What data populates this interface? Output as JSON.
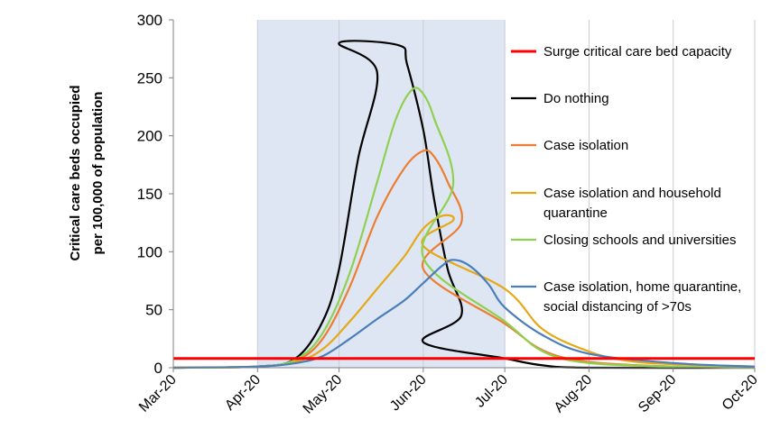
{
  "chart_data": {
    "type": "line",
    "ylabel_line1": "Critical care beds occupied",
    "ylabel_line2": "per 100,000 of population",
    "ylim": [
      0,
      300
    ],
    "yticks": [
      0,
      50,
      100,
      150,
      200,
      250,
      300
    ],
    "xlim": [
      "Mar-20",
      "Oct-20"
    ],
    "xtick_labels": [
      "Mar-20",
      "Apr-20",
      "May-20",
      "Jun-20",
      "Jul-20",
      "Aug-20",
      "Sep-20",
      "Oct-20"
    ],
    "shaded_period": [
      "Apr-20",
      "Jul-20"
    ],
    "grid": "vertical",
    "legend_position": "right",
    "series": [
      {
        "name": "Surge critical care bed capacity",
        "color": "#ff0000",
        "points": [
          [
            "Mar-20",
            8
          ],
          [
            "Oct-20",
            8
          ]
        ]
      },
      {
        "name": "Do nothing",
        "color": "#000000",
        "points": [
          [
            "Mar-20",
            0
          ],
          [
            "Apr-20",
            1
          ],
          [
            "Apr-15",
            8
          ],
          [
            "Apr-25",
            40
          ],
          [
            "May-01",
            85
          ],
          [
            "May-08",
            180
          ],
          [
            "May-15",
            255
          ],
          [
            "May-20",
            280
          ],
          [
            "May-23",
            278
          ],
          [
            "May-26",
            262
          ],
          [
            "Jun-01",
            205
          ],
          [
            "Jun-05",
            145
          ],
          [
            "Jun-10",
            85
          ],
          [
            "Jun-15",
            45
          ],
          [
            "Jun-20",
            22
          ],
          [
            "Jul-01",
            8
          ],
          [
            "Jul-15",
            2
          ],
          [
            "Aug-01",
            0
          ],
          [
            "Oct-20",
            0
          ]
        ]
      },
      {
        "name": "Case isolation",
        "color": "#ed7d31",
        "points": [
          [
            "Mar-20",
            0
          ],
          [
            "Apr-20",
            1
          ],
          [
            "Apr-15",
            6
          ],
          [
            "Apr-25",
            25
          ],
          [
            "May-05",
            70
          ],
          [
            "May-15",
            130
          ],
          [
            "May-25",
            172
          ],
          [
            "Jun-01",
            187
          ],
          [
            "Jun-05",
            182
          ],
          [
            "Jun-10",
            160
          ],
          [
            "Jun-15",
            125
          ],
          [
            "Jun-20",
            85
          ],
          [
            "Jul-01",
            38
          ],
          [
            "Jul-15",
            15
          ],
          [
            "Aug-01",
            5
          ],
          [
            "Sep-01",
            1
          ],
          [
            "Oct-20",
            0
          ]
        ]
      },
      {
        "name": "Case isolation and household quarantine",
        "color": "#e6a817",
        "points": [
          [
            "Mar-20",
            0
          ],
          [
            "Apr-20",
            1
          ],
          [
            "Apr-15",
            5
          ],
          [
            "Apr-25",
            16
          ],
          [
            "May-05",
            40
          ],
          [
            "May-15",
            68
          ],
          [
            "May-25",
            96
          ],
          [
            "Jun-01",
            120
          ],
          [
            "Jun-08",
            131
          ],
          [
            "Jun-12",
            127
          ],
          [
            "Jun-20",
            105
          ],
          [
            "Jul-01",
            68
          ],
          [
            "Jul-15",
            33
          ],
          [
            "Aug-01",
            14
          ],
          [
            "Aug-15",
            6
          ],
          [
            "Sep-01",
            3
          ],
          [
            "Oct-20",
            1
          ]
        ]
      },
      {
        "name": "Closing schools and universities",
        "color": "#8fd14f",
        "points": [
          [
            "Mar-20",
            0
          ],
          [
            "Apr-20",
            1
          ],
          [
            "Apr-15",
            7
          ],
          [
            "Apr-25",
            30
          ],
          [
            "May-05",
            82
          ],
          [
            "May-15",
            160
          ],
          [
            "May-22",
            215
          ],
          [
            "May-28",
            240
          ],
          [
            "Jun-01",
            236
          ],
          [
            "Jun-05",
            215
          ],
          [
            "Jun-12",
            158
          ],
          [
            "Jun-20",
            95
          ],
          [
            "Jul-01",
            40
          ],
          [
            "Jul-15",
            14
          ],
          [
            "Aug-01",
            4
          ],
          [
            "Sep-01",
            1
          ],
          [
            "Oct-20",
            0
          ]
        ]
      },
      {
        "name": "Case isolation, home quarantine, social distancing of >70s",
        "color": "#4a7ebb",
        "points": [
          [
            "Mar-20",
            0
          ],
          [
            "Apr-20",
            1
          ],
          [
            "Apr-15",
            4
          ],
          [
            "Apr-25",
            10
          ],
          [
            "May-05",
            25
          ],
          [
            "May-15",
            42
          ],
          [
            "May-25",
            58
          ],
          [
            "Jun-01",
            73
          ],
          [
            "Jun-08",
            88
          ],
          [
            "Jun-12",
            93
          ],
          [
            "Jun-18",
            88
          ],
          [
            "Jun-25",
            72
          ],
          [
            "Jul-01",
            52
          ],
          [
            "Jul-15",
            28
          ],
          [
            "Aug-01",
            12
          ],
          [
            "Sep-01",
            4
          ],
          [
            "Oct-20",
            1
          ]
        ]
      }
    ]
  }
}
